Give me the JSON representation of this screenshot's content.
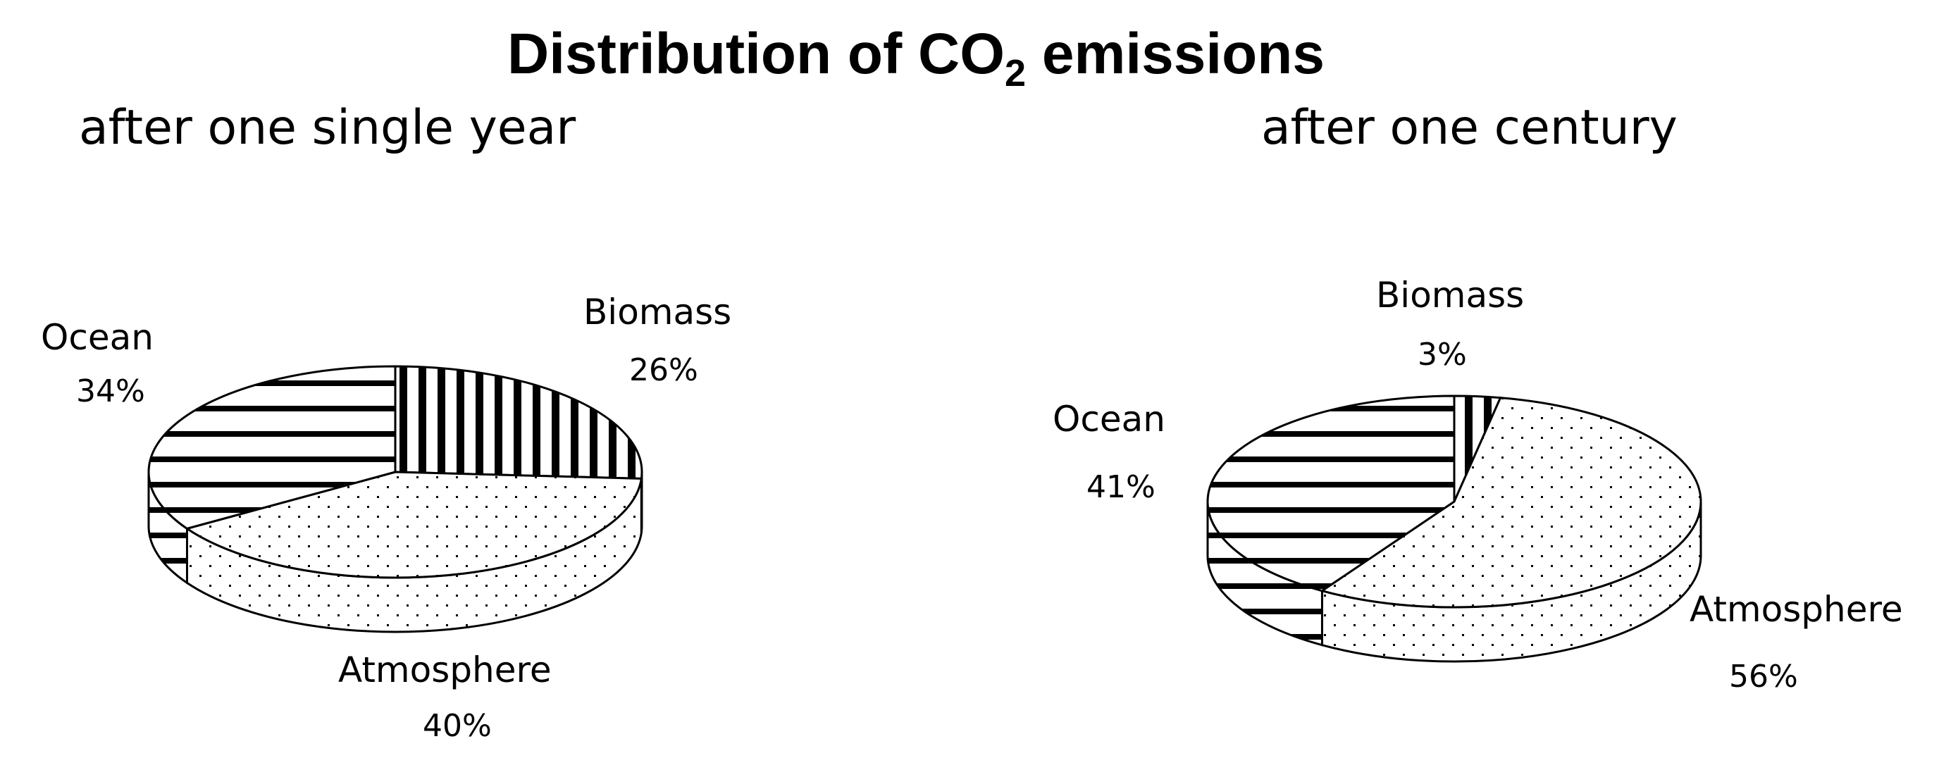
{
  "page": {
    "title_main": "Distribution of CO",
    "title_sub": "2",
    "title_tail": " emissions"
  },
  "chart_data": [
    {
      "type": "pie",
      "title": "after one single year",
      "slices": [
        {
          "label": "Biomass",
          "value": 26,
          "value_label": "26%",
          "pattern": "vertical-stripes"
        },
        {
          "label": "Atmosphere",
          "value": 40,
          "value_label": "40%",
          "pattern": "dots"
        },
        {
          "label": "Ocean",
          "value": 34,
          "value_label": "34%",
          "pattern": "horizontal-stripes"
        }
      ]
    },
    {
      "type": "pie",
      "title": "after one century",
      "slices": [
        {
          "label": "Biomass",
          "value": 3,
          "value_label": "3%",
          "pattern": "vertical-stripes"
        },
        {
          "label": "Atmosphere",
          "value": 56,
          "value_label": "56%",
          "pattern": "dots"
        },
        {
          "label": "Ocean",
          "value": 41,
          "value_label": "41%",
          "pattern": "horizontal-stripes"
        }
      ]
    }
  ]
}
